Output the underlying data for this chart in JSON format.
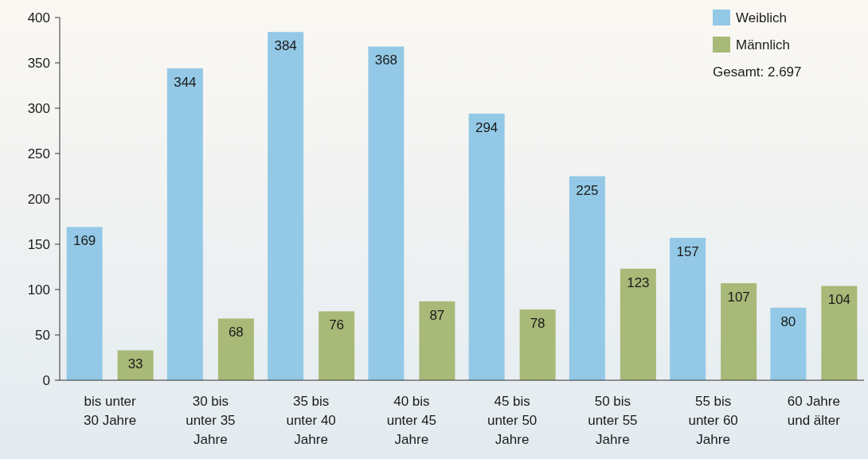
{
  "chart_data": {
    "type": "bar",
    "categories": [
      "bis unter 30 Jahre",
      "30 bis unter 35 Jahre",
      "35 bis unter 40 Jahre",
      "40 bis unter 45 Jahre",
      "45 bis unter 50 Jahre",
      "50 bis unter 55 Jahre",
      "55 bis unter 60 Jahre",
      "60 Jahre und älter"
    ],
    "series": [
      {
        "name": "Weiblich",
        "color": "#93c9e6",
        "values": [
          169,
          344,
          384,
          368,
          294,
          225,
          157,
          80
        ]
      },
      {
        "name": "Männlich",
        "color": "#a8b978",
        "values": [
          33,
          68,
          76,
          87,
          78,
          123,
          107,
          104
        ]
      }
    ],
    "ylim": [
      0,
      400
    ],
    "yticks": [
      0,
      50,
      100,
      150,
      200,
      250,
      300,
      350,
      400
    ],
    "grid": false,
    "legend": "top right",
    "data_labels": true,
    "annotations": [
      "Gesamt: 2.697"
    ]
  }
}
